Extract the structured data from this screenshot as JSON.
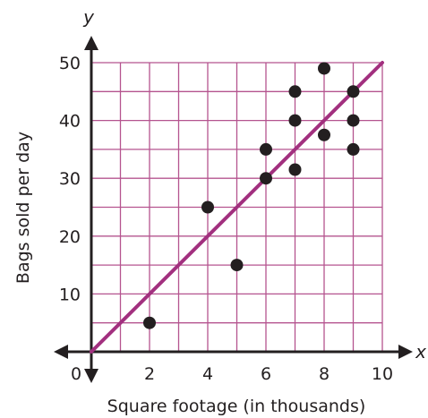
{
  "chart_data": {
    "type": "scatter",
    "title": "",
    "xlabel": "Square footage (in thousands)",
    "ylabel": "Bags sold per day",
    "x_var": "x",
    "y_var": "y",
    "origin_label": "0",
    "xlim": [
      0,
      10
    ],
    "ylim": [
      0,
      50
    ],
    "x_ticks": [
      {
        "value": 2,
        "label": "2"
      },
      {
        "value": 4,
        "label": "4"
      },
      {
        "value": 6,
        "label": "6"
      },
      {
        "value": 8,
        "label": "8"
      },
      {
        "value": 10,
        "label": "10"
      }
    ],
    "y_ticks": [
      {
        "value": 10,
        "label": "10"
      },
      {
        "value": 20,
        "label": "20"
      },
      {
        "value": 30,
        "label": "30"
      },
      {
        "value": 40,
        "label": "40"
      },
      {
        "value": 50,
        "label": "50"
      }
    ],
    "grid": true,
    "grid_step_x": 1,
    "grid_step_y": 5,
    "points": [
      {
        "x": 2,
        "y": 5
      },
      {
        "x": 4,
        "y": 25
      },
      {
        "x": 5,
        "y": 15
      },
      {
        "x": 6,
        "y": 30
      },
      {
        "x": 6,
        "y": 35
      },
      {
        "x": 7,
        "y": 31.5
      },
      {
        "x": 7,
        "y": 40
      },
      {
        "x": 7,
        "y": 45
      },
      {
        "x": 8,
        "y": 37.5
      },
      {
        "x": 8,
        "y": 49
      },
      {
        "x": 9,
        "y": 35
      },
      {
        "x": 9,
        "y": 40
      },
      {
        "x": 9,
        "y": 45
      }
    ],
    "trend_line": {
      "x": [
        0,
        10
      ],
      "y": [
        0,
        50
      ]
    },
    "colors": {
      "grid": "#b5548f",
      "trend_line": "#a2307f",
      "points": "#231f20",
      "axes": "#231f20"
    }
  }
}
